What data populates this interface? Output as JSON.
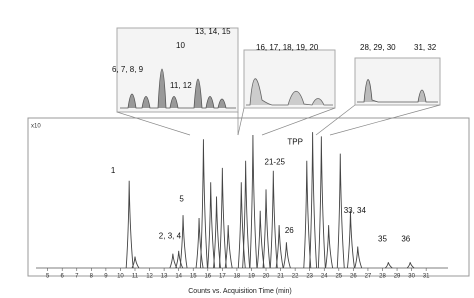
{
  "chart_data": {
    "type": "line",
    "xlabel": "Counts vs. Acquisition Time (min)",
    "ylabel": "x10",
    "xlim": [
      4.2,
      32.5
    ],
    "ylim": [
      0,
      100
    ],
    "xticks": [
      5,
      6,
      7,
      8,
      9,
      10,
      11,
      12,
      13,
      14,
      15,
      16,
      17,
      18,
      19,
      20,
      21,
      22,
      23,
      24,
      25,
      26,
      27,
      28,
      29,
      30,
      31
    ],
    "color": "#444444",
    "peaks": {
      "x": [
        10.6,
        11.0,
        13.6,
        14.0,
        14.3,
        15.4,
        15.7,
        16.2,
        16.6,
        17.0,
        17.4,
        18.3,
        18.6,
        19.1,
        19.6,
        20.0,
        20.5,
        20.9,
        21.4,
        22.8,
        23.2,
        23.8,
        24.3,
        25.1,
        25.8,
        26.3,
        28.4,
        29.9
      ],
      "values": [
        61,
        8,
        10,
        12,
        37,
        35,
        90,
        60,
        50,
        70,
        30,
        60,
        75,
        93,
        40,
        55,
        68,
        30,
        18,
        75,
        95,
        92,
        30,
        80,
        40,
        15,
        4,
        4
      ]
    },
    "annotations": [
      {
        "text": "1",
        "x": 9.5,
        "y": 68
      },
      {
        "text": "2, 3, 4",
        "x": 13.4,
        "y": 22
      },
      {
        "text": "5",
        "x": 14.2,
        "y": 48
      },
      {
        "text": "21-25",
        "x": 20.6,
        "y": 74
      },
      {
        "text": "TPP",
        "x": 22.0,
        "y": 88
      },
      {
        "text": "26",
        "x": 21.6,
        "y": 26
      },
      {
        "text": "33, 34",
        "x": 26.1,
        "y": 40
      },
      {
        "text": "35",
        "x": 28.0,
        "y": 20
      },
      {
        "text": "36",
        "x": 29.6,
        "y": 20
      }
    ],
    "insets": [
      {
        "labels": [
          "10",
          "13, 14, 15",
          "6, 7, 8, 9",
          "11, 12"
        ]
      },
      {
        "labels": [
          "16, 17, 18, 19, 20"
        ]
      },
      {
        "labels": [
          "28, 29, 30",
          "31, 32"
        ]
      }
    ]
  }
}
